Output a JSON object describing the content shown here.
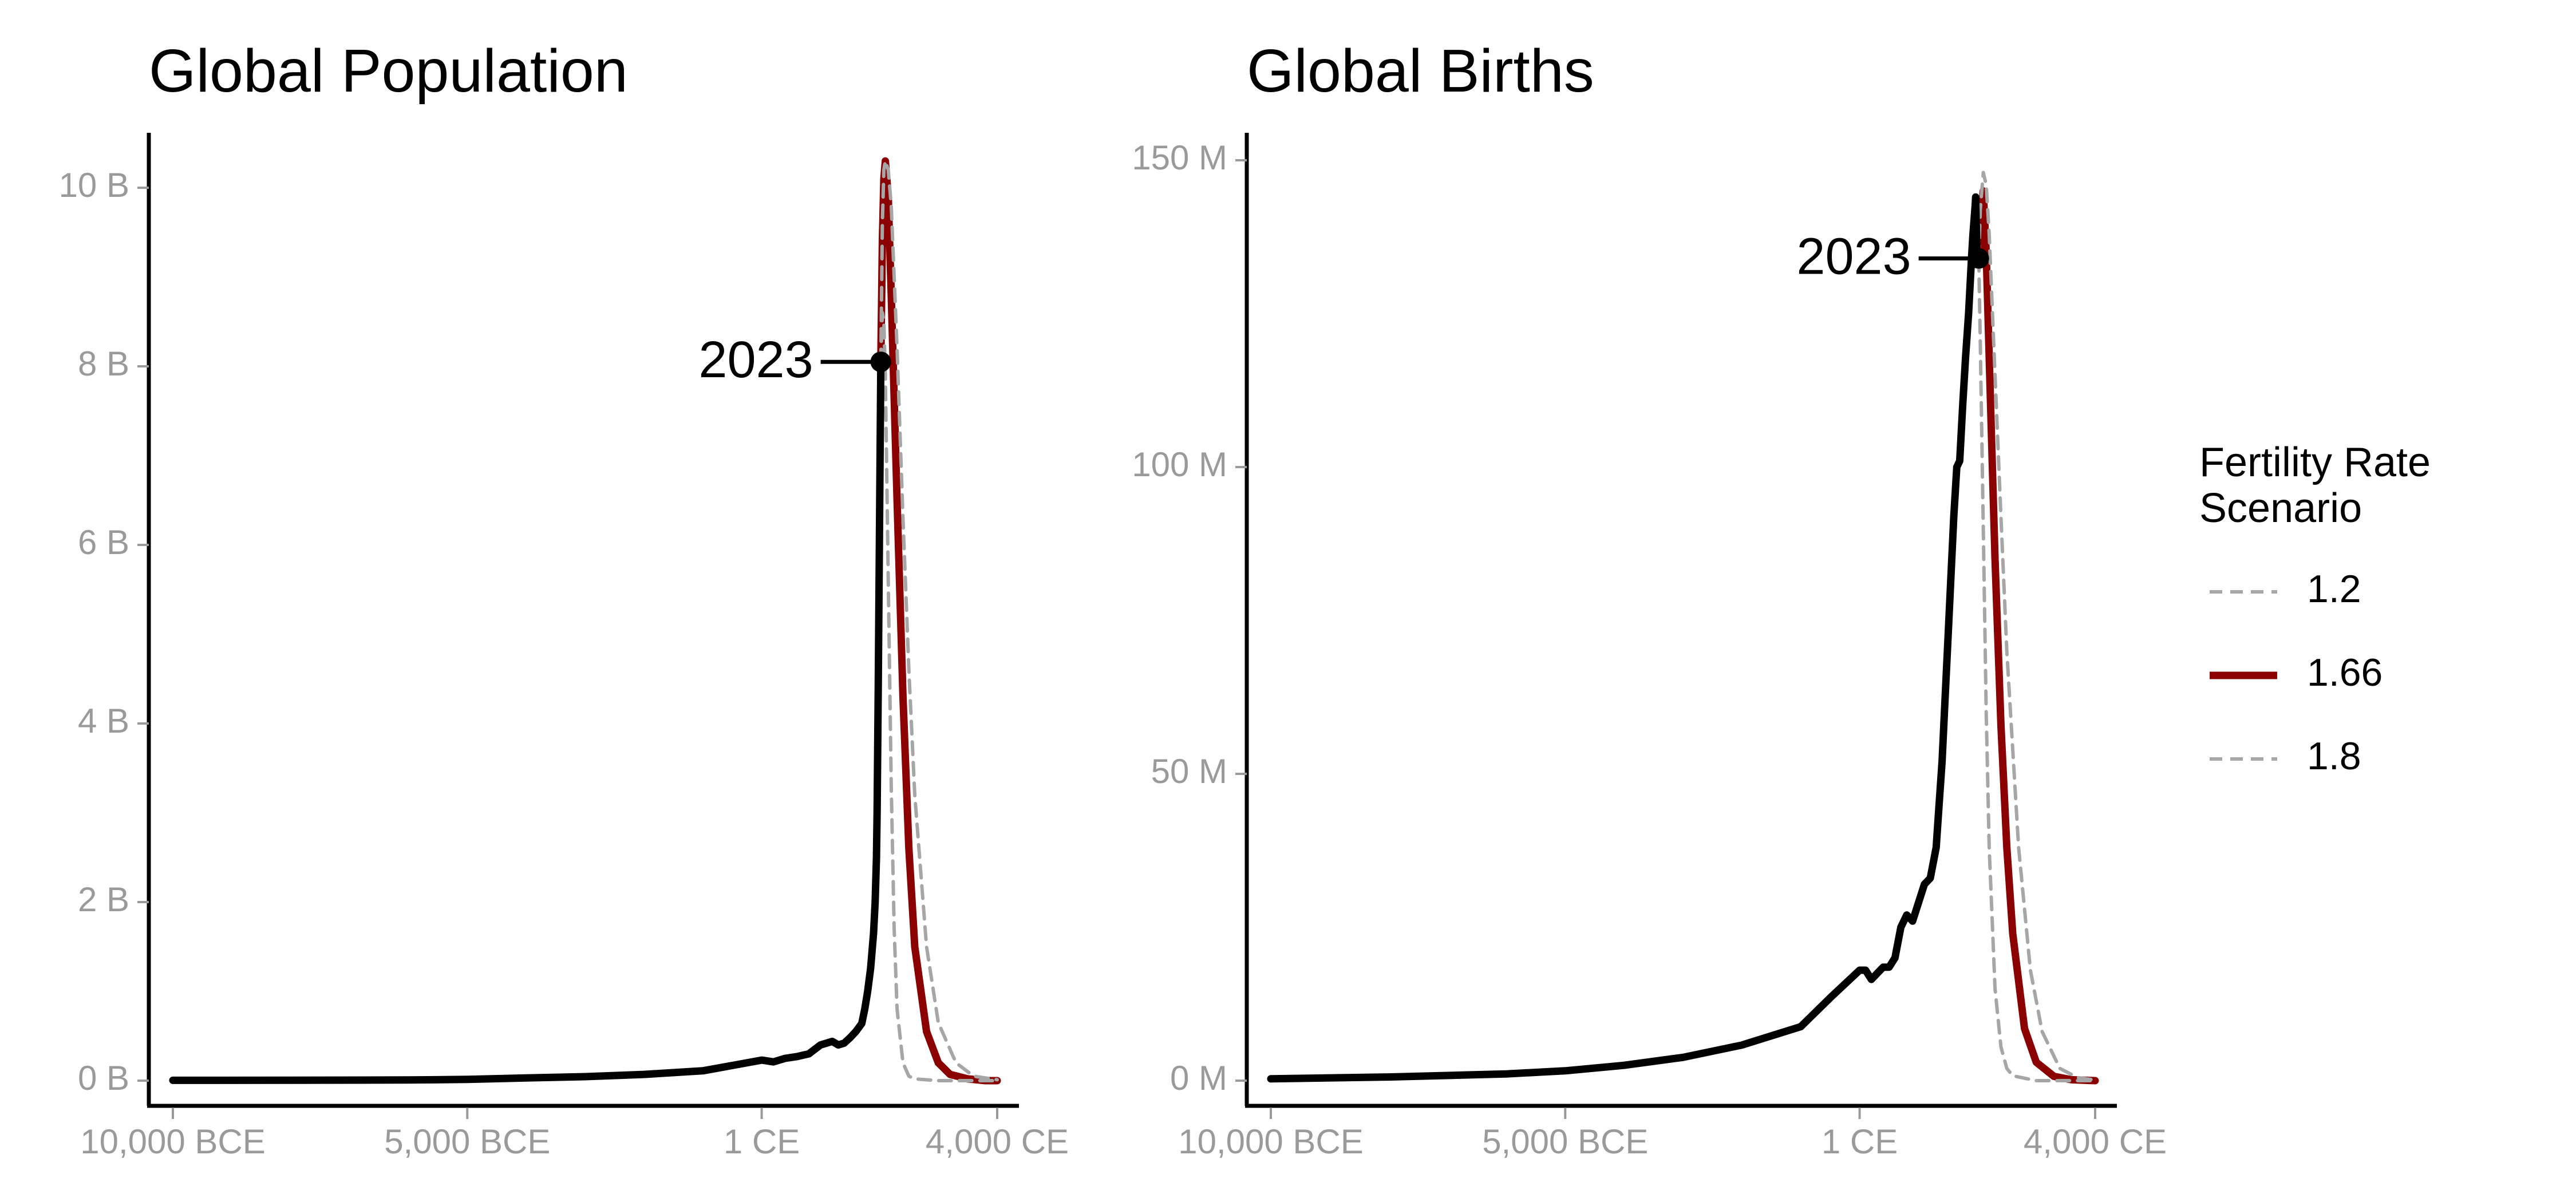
{
  "legend": {
    "title_line1": "Fertility Rate",
    "title_line2": "Scenario",
    "entries": [
      {
        "label": "1.2",
        "color": "#a6a6a6",
        "dash": true
      },
      {
        "label": "1.66",
        "color": "#8b0000",
        "dash": false
      },
      {
        "label": "1.8",
        "color": "#a6a6a6",
        "dash": true
      }
    ]
  },
  "chart_data": [
    {
      "type": "line",
      "title": "Global Population",
      "xlabel": "",
      "ylabel": "",
      "xlim": [
        -10000,
        4000
      ],
      "ylim": [
        0,
        10
      ],
      "unit": "billion",
      "x_ticks": [
        {
          "value": -10000,
          "label": "10,000 BCE"
        },
        {
          "value": -5000,
          "label": "5,000 BCE"
        },
        {
          "value": 0,
          "label": "1 CE"
        },
        {
          "value": 4000,
          "label": "4,000 CE"
        }
      ],
      "y_ticks": [
        {
          "value": 0,
          "label": "0 B"
        },
        {
          "value": 2,
          "label": "2 B"
        },
        {
          "value": 4,
          "label": "4 B"
        },
        {
          "value": 6,
          "label": "6 B"
        },
        {
          "value": 8,
          "label": "8 B"
        },
        {
          "value": 10,
          "label": "10 B"
        }
      ],
      "annotation": {
        "label": "2023",
        "x": 2023,
        "y": 8.05
      },
      "historical": {
        "color": "#000000",
        "x": [
          -10000,
          -8000,
          -6000,
          -5000,
          -4000,
          -3000,
          -2000,
          -1000,
          -500,
          0,
          200,
          400,
          600,
          800,
          1000,
          1200,
          1300,
          1400,
          1500,
          1600,
          1700,
          1750,
          1800,
          1850,
          1900,
          1927,
          1950,
          1960,
          1970,
          1980,
          1990,
          2000,
          2010,
          2023
        ],
        "y": [
          0.004,
          0.005,
          0.008,
          0.014,
          0.03,
          0.045,
          0.07,
          0.11,
          0.17,
          0.23,
          0.21,
          0.25,
          0.27,
          0.3,
          0.4,
          0.44,
          0.4,
          0.42,
          0.48,
          0.55,
          0.64,
          0.8,
          1.0,
          1.26,
          1.65,
          2.0,
          2.5,
          3.0,
          3.7,
          4.4,
          5.3,
          6.1,
          6.9,
          8.05
        ]
      },
      "series": [
        {
          "name": "1.2",
          "color": "#a6a6a6",
          "dash": true,
          "x": [
            2023,
            2050,
            2075,
            2100,
            2150,
            2200,
            2250,
            2300,
            2400,
            2500,
            2600,
            3000,
            4000
          ],
          "y": [
            8.05,
            8.6,
            8.5,
            7.9,
            5.6,
            3.3,
            1.7,
            0.8,
            0.2,
            0.05,
            0.02,
            0,
            0
          ]
        },
        {
          "name": "1.66",
          "color": "#8b0000",
          "dash": false,
          "x": [
            2023,
            2050,
            2075,
            2100,
            2150,
            2200,
            2300,
            2400,
            2500,
            2600,
            2800,
            3000,
            3200,
            3500,
            3800,
            4000
          ],
          "y": [
            8.05,
            9.4,
            10.1,
            10.3,
            9.9,
            8.8,
            6.5,
            4.3,
            2.6,
            1.5,
            0.55,
            0.2,
            0.07,
            0.02,
            0,
            0
          ]
        },
        {
          "name": "1.8",
          "color": "#a6a6a6",
          "dash": true,
          "x": [
            2023,
            2050,
            2075,
            2100,
            2150,
            2200,
            2300,
            2400,
            2500,
            2600,
            2800,
            3000,
            3300,
            3600,
            4000
          ],
          "y": [
            8.05,
            9.6,
            10.2,
            10.3,
            10.2,
            9.8,
            8.2,
            6.3,
            4.6,
            3.2,
            1.5,
            0.65,
            0.2,
            0.05,
            0.01
          ]
        }
      ]
    },
    {
      "type": "line",
      "title": "Global Births",
      "xlabel": "",
      "ylabel": "",
      "xlim": [
        -10000,
        4000
      ],
      "ylim": [
        0,
        150
      ],
      "unit": "million",
      "x_ticks": [
        {
          "value": -10000,
          "label": "10,000 BCE"
        },
        {
          "value": -5000,
          "label": "5,000 BCE"
        },
        {
          "value": 0,
          "label": "1 CE"
        },
        {
          "value": 4000,
          "label": "4,000 CE"
        }
      ],
      "y_ticks": [
        {
          "value": 0,
          "label": "0 M"
        },
        {
          "value": 50,
          "label": "50 M"
        },
        {
          "value": 100,
          "label": "100 M"
        },
        {
          "value": 150,
          "label": "150 M"
        }
      ],
      "annotation": {
        "label": "2023",
        "x": 2023,
        "y": 134
      },
      "historical": {
        "color": "#000000",
        "x": [
          -10000,
          -8000,
          -6000,
          -5000,
          -4000,
          -3000,
          -2000,
          -1000,
          -500,
          0,
          100,
          200,
          300,
          400,
          500,
          600,
          700,
          800,
          900,
          1000,
          1100,
          1200,
          1300,
          1350,
          1400,
          1450,
          1500,
          1550,
          1600,
          1650,
          1700,
          1750,
          1800,
          1850,
          1900,
          1925,
          1950,
          1965,
          1970,
          1980,
          1990,
          2000,
          2010,
          2015,
          2023
        ],
        "y": [
          0.3,
          0.6,
          1.1,
          1.6,
          2.5,
          3.8,
          5.8,
          8.8,
          13.5,
          18,
          18,
          16.5,
          17.5,
          18.5,
          18.5,
          20,
          25,
          27,
          26,
          29,
          32,
          33,
          38,
          45,
          52,
          62,
          72,
          82,
          92,
          100,
          101,
          110,
          118,
          125,
          134,
          138,
          141,
          143,
          144,
          140,
          136,
          134,
          134,
          135,
          134
        ]
      },
      "series": [
        {
          "name": "1.2",
          "color": "#a6a6a6",
          "dash": true,
          "x": [
            2023,
            2050,
            2100,
            2150,
            2200,
            2300,
            2400,
            2500,
            2600,
            3000,
            4000
          ],
          "y": [
            134,
            120,
            90,
            60,
            38,
            15,
            5.5,
            2,
            0.8,
            0,
            0
          ]
        },
        {
          "name": "1.66",
          "color": "#8b0000",
          "dash": false,
          "x": [
            2023,
            2050,
            2100,
            2150,
            2200,
            2300,
            2400,
            2500,
            2600,
            2800,
            3000,
            3300,
            3600,
            4000
          ],
          "y": [
            134,
            140,
            145,
            135,
            118,
            85,
            58,
            38,
            24,
            8.5,
            3,
            0.7,
            0.15,
            0
          ]
        },
        {
          "name": "1.8",
          "color": "#a6a6a6",
          "dash": true,
          "x": [
            2023,
            2050,
            2100,
            2150,
            2200,
            2300,
            2400,
            2500,
            2700,
            2900,
            3100,
            3400,
            3700,
            4000
          ],
          "y": [
            134,
            142,
            148,
            146,
            138,
            115,
            92,
            70,
            38,
            18,
            8,
            2,
            0.5,
            0.1
          ]
        }
      ]
    }
  ]
}
